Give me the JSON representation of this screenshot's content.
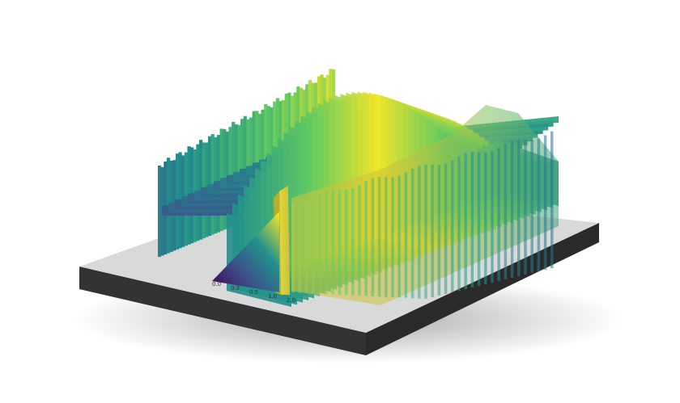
{
  "chart_data": {
    "type": "surface-3d",
    "colormap": "viridis",
    "colormap_stops": [
      "#440154",
      "#3b528b",
      "#21918c",
      "#5ec962",
      "#fde725"
    ],
    "base_colors": {
      "board_top": "#d8d8d8",
      "board_edge": "#333333",
      "board_side": "#9a9a9a"
    },
    "bottom_edge_ticks": [
      "0.0",
      "0.2",
      "0.5",
      "1.0",
      "2.0"
    ],
    "left_edge_label": "",
    "right_edge_label": "",
    "profile_description_values": {
      "rows": 34,
      "back_wall_height": [
        0.62,
        0.6,
        0.58,
        0.55,
        0.52,
        0.5,
        0.47,
        0.45,
        0.42,
        0.4
      ],
      "arch_peak": 0.95,
      "trough_level": 0.35
    }
  }
}
